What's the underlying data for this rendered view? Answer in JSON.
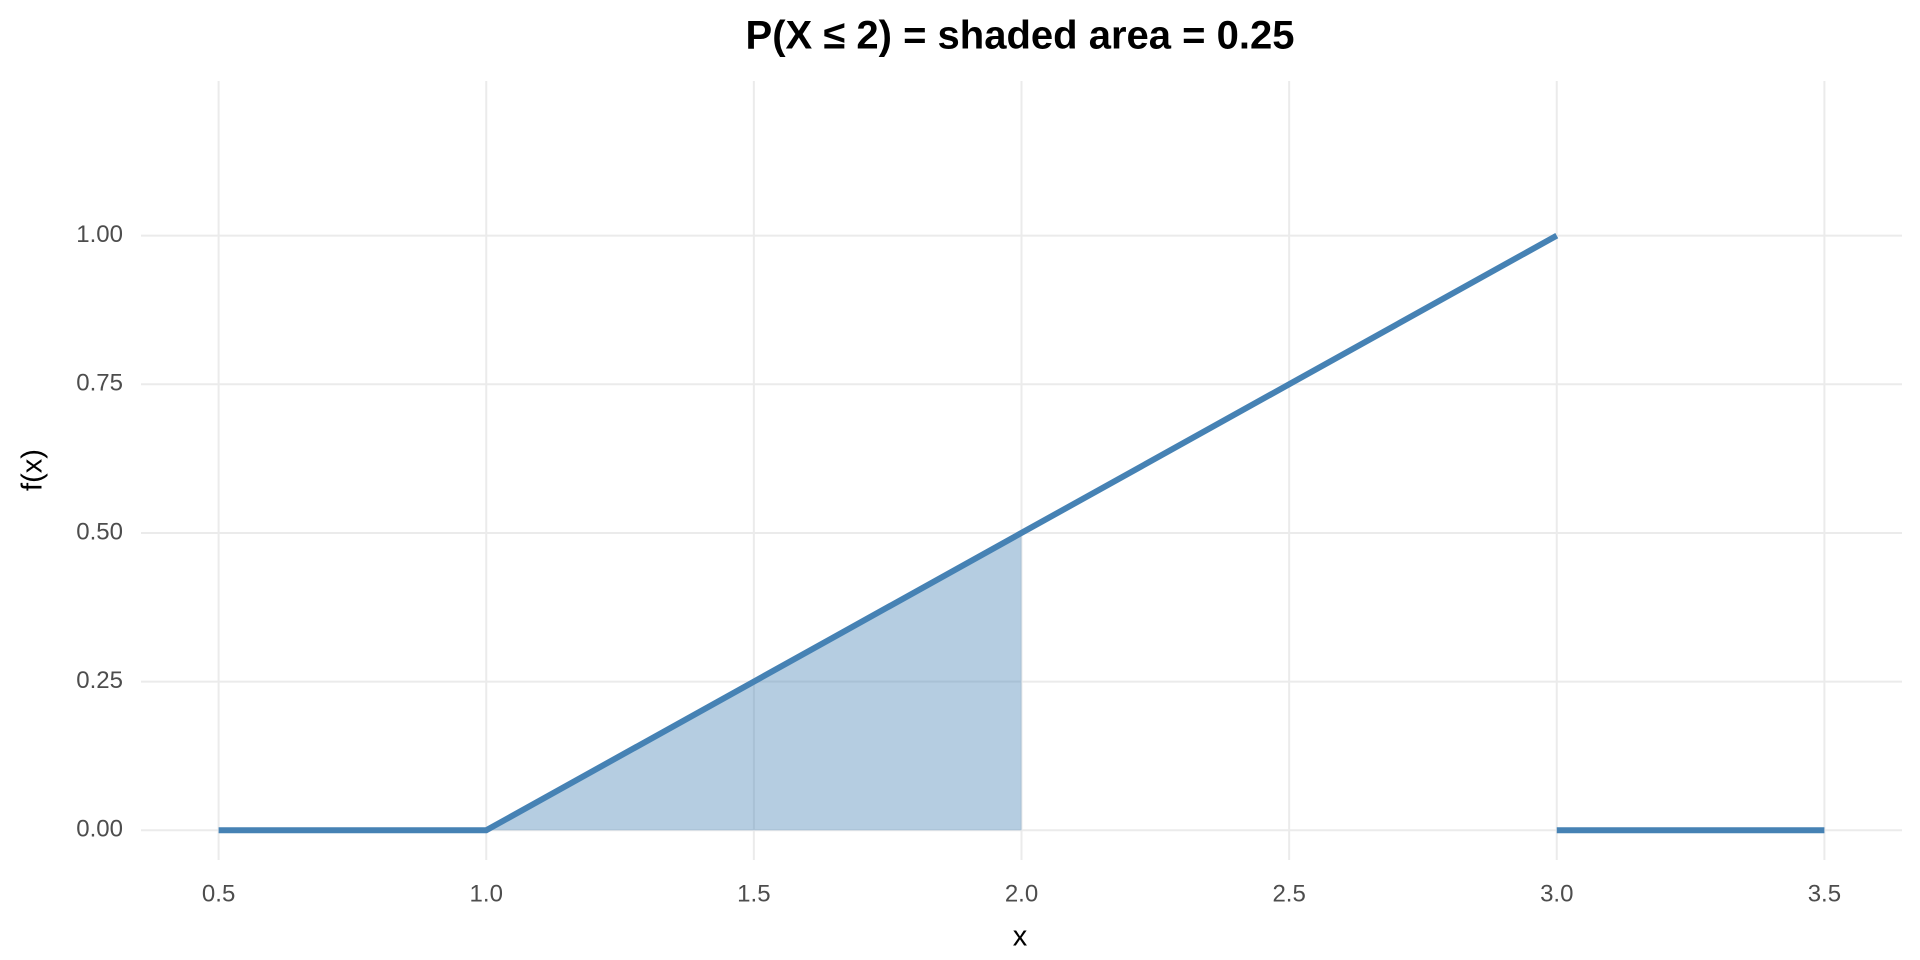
{
  "chart_data": {
    "type": "line",
    "title": "P(X ≤ 2) = shaded area = 0.25",
    "x_label": "x",
    "y_label": "f(x)",
    "series": [
      {
        "type": "area",
        "color": "#4682b4",
        "alpha": 0.4,
        "x": [
          1.0,
          2.0
        ],
        "values": [
          0,
          0.5
        ]
      },
      {
        "type": "line",
        "color": "#4682b4",
        "x": [
          0.5,
          1.0,
          3.0,
          3.0,
          3.0,
          3.5
        ],
        "values": [
          0,
          0,
          1,
          null,
          0,
          0
        ]
      }
    ],
    "xlim": [
      0.355,
      3.645
    ],
    "ylim": [
      -0.05,
      1.26
    ],
    "xticks": [
      0.5,
      {
        "value": 1.0,
        "label": "1.0"
      },
      1.5,
      {
        "value": 2.0,
        "label": "2.0"
      },
      2.5,
      {
        "value": 3.0,
        "label": "3.0"
      },
      3.5
    ],
    "yticks": [
      {
        "value": 0,
        "label": "0.00"
      },
      0.25,
      {
        "value": 0.5,
        "label": "0.50"
      },
      0.75,
      {
        "value": 1,
        "label": "1.00"
      }
    ],
    "grid": true
  }
}
